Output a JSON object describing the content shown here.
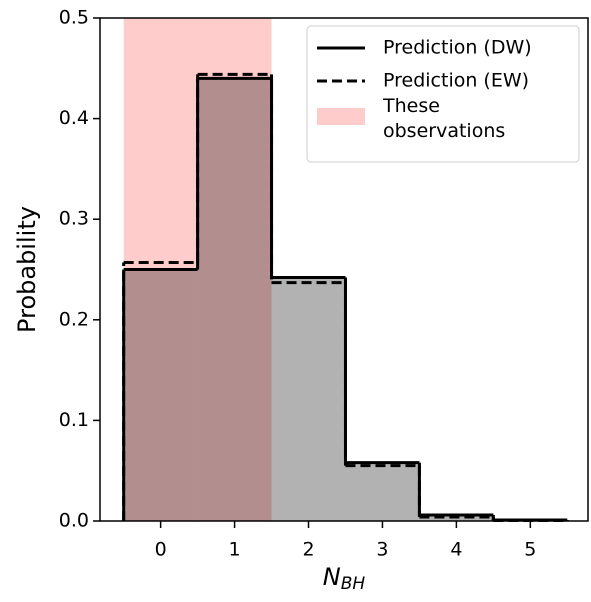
{
  "chart_data": {
    "type": "step_histogram",
    "xlabel": "N",
    "xlabel_sub": "BH",
    "ylabel": "Probability",
    "bins": [
      -0.5,
      0.5,
      1.5,
      2.5,
      3.5,
      4.5,
      5.5
    ],
    "series": [
      {
        "name": "Prediction (DW)",
        "color": "#000000",
        "dash": false,
        "fill": "#000000",
        "values": [
          0.25,
          0.44,
          0.242,
          0.058,
          0.006,
          0.001
        ]
      },
      {
        "name": "Prediction (EW)",
        "color": "#000000",
        "dash": true,
        "values": [
          0.257,
          0.444,
          0.237,
          0.055,
          0.004,
          0.0005
        ]
      }
    ],
    "span": {
      "label": "These observations",
      "xlim": [
        -0.5,
        1.5
      ],
      "color": "#ffcccc"
    },
    "xlim": [
      -0.82,
      5.78
    ],
    "ylim": [
      0,
      0.5
    ],
    "xticks": [
      0,
      1,
      2,
      3,
      4,
      5
    ],
    "yticks": [
      {
        "value": 0,
        "label": "0.0"
      },
      0.1,
      0.2,
      0.3,
      0.4,
      0.5
    ],
    "legend": "upper right"
  }
}
